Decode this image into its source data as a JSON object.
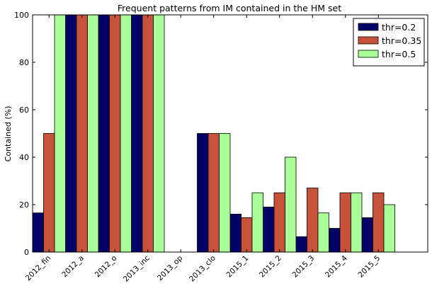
{
  "chart_data": {
    "type": "bar",
    "title": "Frequent patterns from IM contained in the HM set",
    "xlabel": "",
    "ylabel": "Contained (%)",
    "ylim": [
      0,
      100
    ],
    "yticks": [
      0,
      20,
      40,
      60,
      80,
      100
    ],
    "grid": false,
    "legend_position": "top-right",
    "categories": [
      "2012_fin",
      "2012_a",
      "2012_o",
      "2013_inc",
      "2013_op",
      "2013_clo",
      "2015_1",
      "2015_2",
      "2015_3",
      "2015_4",
      "2015_5"
    ],
    "series": [
      {
        "name": "thr=0.2",
        "color": "#000066",
        "values": [
          16.5,
          100,
          100,
          100,
          0,
          50,
          16,
          19,
          6.5,
          10,
          14.5
        ]
      },
      {
        "name": "thr=0.35",
        "color": "#c65339",
        "values": [
          50,
          100,
          100,
          100,
          0,
          50,
          14.5,
          25,
          27,
          25,
          25
        ]
      },
      {
        "name": "thr=0.5",
        "color": "#aaff99",
        "values": [
          100,
          100,
          100,
          100,
          0,
          50,
          25,
          40,
          16.5,
          25,
          20
        ]
      }
    ]
  }
}
